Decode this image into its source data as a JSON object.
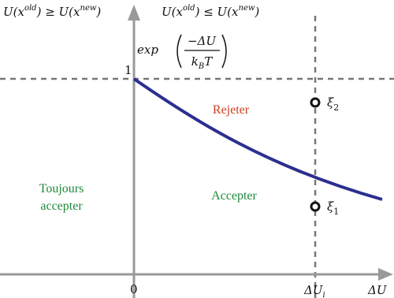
{
  "conditions": {
    "left": [
      "U(x",
      "old",
      ") ≥ U(x",
      "new",
      ")"
    ],
    "right": [
      "U(x",
      "old",
      ") ≤ U(x",
      "new",
      ")"
    ]
  },
  "curve_label": {
    "func": "exp",
    "numerator": "−ΔU",
    "denominator": [
      "k",
      "B",
      "T"
    ]
  },
  "axis": {
    "y_one": "1",
    "origin": "0",
    "x_label": "ΔU",
    "x_mark": [
      "ΔU",
      "i"
    ]
  },
  "zones": {
    "reject": "Rejeter",
    "accept": "Accepter",
    "always": [
      "Toujours",
      "accepter"
    ]
  },
  "points": [
    {
      "label": [
        "ξ",
        "2"
      ]
    },
    {
      "label": [
        "ξ",
        "1"
      ]
    }
  ]
}
